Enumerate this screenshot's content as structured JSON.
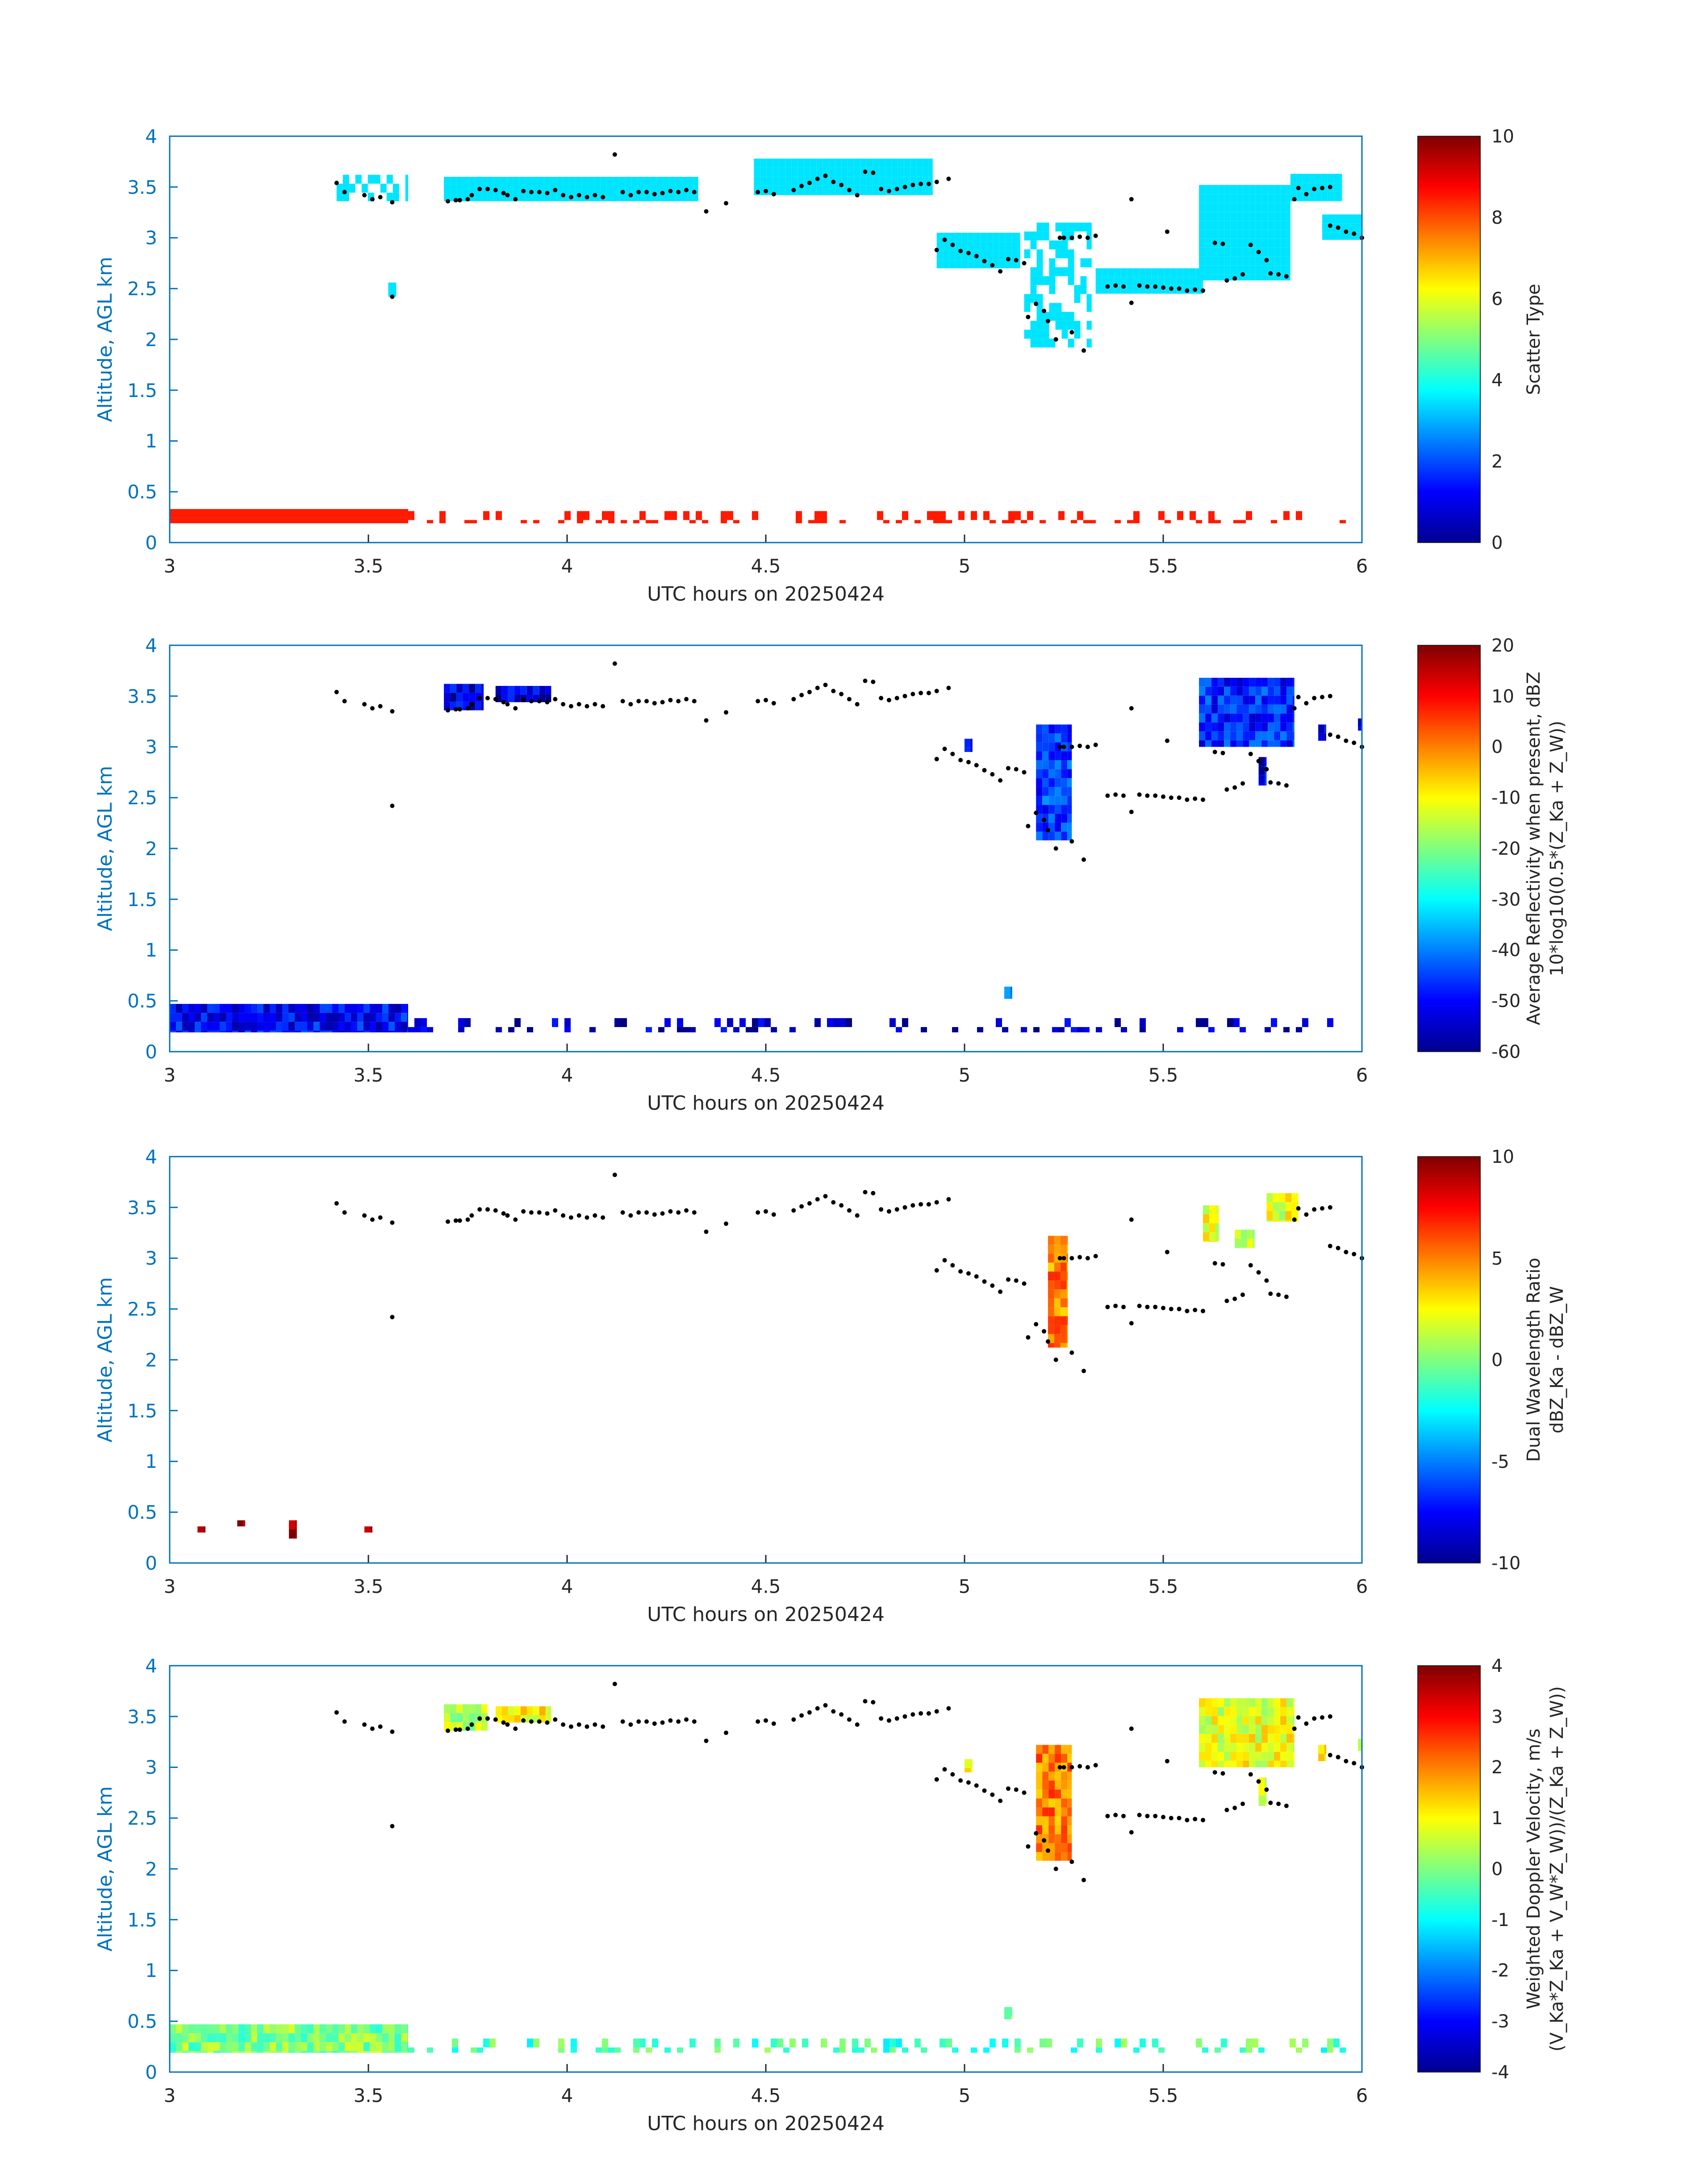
{
  "figure": {
    "colors": {
      "axis": "#0072BD",
      "text": "#262626",
      "background": "#ffffff"
    }
  },
  "chart_data": [
    {
      "type": "heatmap",
      "title": "",
      "xlabel": "UTC hours on 20250424",
      "ylabel": "Altitude, AGL km",
      "xlim": [
        3,
        6
      ],
      "ylim": [
        0,
        4
      ],
      "xticks": [
        "3",
        "3.5",
        "4",
        "4.5",
        "5",
        "5.5",
        "6"
      ],
      "yticks": [
        "0",
        "0.5",
        "1",
        "1.5",
        "2",
        "2.5",
        "3",
        "3.5",
        "4"
      ],
      "colorbar": {
        "label": [
          "Scatter Type"
        ],
        "range": [
          0,
          10
        ],
        "ticks": [
          "0",
          "2",
          "4",
          "6",
          "8",
          "10"
        ]
      },
      "regions": [
        {
          "x": [
            3.0,
            3.6
          ],
          "y": [
            0.19,
            0.33
          ],
          "value": 8.5
        },
        {
          "x": [
            3.6,
            6.0
          ],
          "y": [
            0.19,
            0.31
          ],
          "value": 8.5,
          "sparse": 0.3
        },
        {
          "x": [
            3.42,
            3.6
          ],
          "y": [
            3.36,
            3.62
          ],
          "value": 3.5,
          "sparse": 0.55
        },
        {
          "x": [
            3.55,
            3.57
          ],
          "y": [
            2.42,
            2.56
          ],
          "value": 3.5
        },
        {
          "x": [
            3.69,
            4.33
          ],
          "y": [
            3.36,
            3.6
          ],
          "value": 3.5
        },
        {
          "x": [
            4.47,
            4.92
          ],
          "y": [
            3.42,
            3.78
          ],
          "value": 3.5
        },
        {
          "x": [
            4.93,
            5.14
          ],
          "y": [
            2.7,
            3.05
          ],
          "value": 3.5
        },
        {
          "x": [
            5.15,
            5.32
          ],
          "y": [
            1.92,
            3.15
          ],
          "value": 3.5,
          "sparse": 0.55
        },
        {
          "x": [
            5.33,
            5.6
          ],
          "y": [
            2.45,
            2.7
          ],
          "value": 3.5
        },
        {
          "x": [
            5.59,
            5.82
          ],
          "y": [
            2.58,
            3.52
          ],
          "value": 3.5
        },
        {
          "x": [
            5.82,
            5.95
          ],
          "y": [
            3.36,
            3.63
          ],
          "value": 3.5
        },
        {
          "x": [
            5.9,
            6.0
          ],
          "y": [
            2.98,
            3.23
          ],
          "value": 3.5
        }
      ]
    },
    {
      "type": "heatmap",
      "title": "",
      "xlabel": "UTC hours on 20250424",
      "ylabel": "Altitude, AGL km",
      "xlim": [
        3,
        6
      ],
      "ylim": [
        0,
        4
      ],
      "xticks": [
        "3",
        "3.5",
        "4",
        "4.5",
        "5",
        "5.5",
        "6"
      ],
      "yticks": [
        "0",
        "0.5",
        "1",
        "1.5",
        "2",
        "2.5",
        "3",
        "3.5",
        "4"
      ],
      "colorbar": {
        "label": [
          "Average Reflectivity when present, dBZ",
          "10*log10(0.5*(Z_Ka + Z_W))"
        ],
        "range": [
          -60,
          20
        ],
        "ticks": [
          "-60",
          "-50",
          "-40",
          "-30",
          "-20",
          "-10",
          "0",
          "10",
          "20"
        ]
      },
      "regions": [
        {
          "x": [
            3.0,
            3.6
          ],
          "y": [
            0.19,
            0.47
          ],
          "value": -50
        },
        {
          "x": [
            3.6,
            6.0
          ],
          "y": [
            0.19,
            0.33
          ],
          "value": -55,
          "sparse": 0.3
        },
        {
          "x": [
            3.69,
            3.79
          ],
          "y": [
            3.36,
            3.62
          ],
          "value": -52
        },
        {
          "x": [
            3.82,
            3.96
          ],
          "y": [
            3.44,
            3.6
          ],
          "value": -53
        },
        {
          "x": [
            5.0,
            5.02
          ],
          "y": [
            2.95,
            3.08
          ],
          "value": -52
        },
        {
          "x": [
            5.18,
            5.27
          ],
          "y": [
            2.08,
            3.22
          ],
          "value": -45
        },
        {
          "x": [
            5.59,
            5.83
          ],
          "y": [
            3.0,
            3.68
          ],
          "value": -47
        },
        {
          "x": [
            5.74,
            5.76
          ],
          "y": [
            2.62,
            2.9
          ],
          "value": -52
        },
        {
          "x": [
            5.89,
            5.91
          ],
          "y": [
            3.06,
            3.22
          ],
          "value": -52
        },
        {
          "x": [
            5.99,
            6.0
          ],
          "y": [
            3.16,
            3.28
          ],
          "value": -52
        },
        {
          "x": [
            5.1,
            5.12
          ],
          "y": [
            0.52,
            0.64
          ],
          "value": -40
        }
      ]
    },
    {
      "type": "heatmap",
      "title": "",
      "xlabel": "UTC hours on 20250424",
      "ylabel": "Altitude, AGL km",
      "xlim": [
        3,
        6
      ],
      "ylim": [
        0,
        4
      ],
      "xticks": [
        "3",
        "3.5",
        "4",
        "4.5",
        "5",
        "5.5",
        "6"
      ],
      "yticks": [
        "0",
        "0.5",
        "1",
        "1.5",
        "2",
        "2.5",
        "3",
        "3.5",
        "4"
      ],
      "colorbar": {
        "label": [
          "Dual Wavelength Ratio",
          "dBZ_Ka - dBZ_W"
        ],
        "range": [
          -10,
          10
        ],
        "ticks": [
          "-10",
          "-5",
          "0",
          "5",
          "10"
        ]
      },
      "regions": [
        {
          "x": [
            3.07,
            3.09
          ],
          "y": [
            0.3,
            0.36
          ],
          "value": 10
        },
        {
          "x": [
            3.17,
            3.19
          ],
          "y": [
            0.36,
            0.42
          ],
          "value": 10
        },
        {
          "x": [
            3.3,
            3.32
          ],
          "y": [
            0.24,
            0.42
          ],
          "value": 9
        },
        {
          "x": [
            3.49,
            3.51
          ],
          "y": [
            0.3,
            0.36
          ],
          "value": 10
        },
        {
          "x": [
            5.21,
            5.26
          ],
          "y": [
            2.12,
            3.22
          ],
          "value": 5
        },
        {
          "x": [
            5.6,
            5.64
          ],
          "y": [
            3.16,
            3.52
          ],
          "value": 2
        },
        {
          "x": [
            5.68,
            5.73
          ],
          "y": [
            3.1,
            3.28
          ],
          "value": 1
        },
        {
          "x": [
            5.76,
            5.84
          ],
          "y": [
            3.36,
            3.64
          ],
          "value": 2
        }
      ]
    },
    {
      "type": "heatmap",
      "title": "",
      "xlabel": "UTC hours on 20250424",
      "ylabel": "Altitude, AGL km",
      "xlim": [
        3,
        6
      ],
      "ylim": [
        0,
        4
      ],
      "xticks": [
        "3",
        "3.5",
        "4",
        "4.5",
        "5",
        "5.5",
        "6"
      ],
      "yticks": [
        "0",
        "0.5",
        "1",
        "1.5",
        "2",
        "2.5",
        "3",
        "3.5",
        "4"
      ],
      "colorbar": {
        "label": [
          "Weighted Doppler Velocity, m/s",
          "(V_Ka*Z_Ka + V_W*Z_W))/(Z_Ka + Z_W))"
        ],
        "range": [
          -4,
          4
        ],
        "ticks": [
          "-4",
          "-3",
          "-2",
          "-1",
          "0",
          "1",
          "2",
          "3",
          "4"
        ]
      },
      "regions": [
        {
          "x": [
            3.0,
            3.6
          ],
          "y": [
            0.19,
            0.47
          ],
          "value": 0
        },
        {
          "x": [
            3.6,
            6.0
          ],
          "y": [
            0.19,
            0.33
          ],
          "value": -0.4,
          "sparse": 0.3
        },
        {
          "x": [
            3.69,
            3.8
          ],
          "y": [
            3.36,
            3.62
          ],
          "value": 0.5
        },
        {
          "x": [
            3.82,
            3.96
          ],
          "y": [
            3.44,
            3.6
          ],
          "value": 1
        },
        {
          "x": [
            5.0,
            5.02
          ],
          "y": [
            2.95,
            3.08
          ],
          "value": 1
        },
        {
          "x": [
            5.18,
            5.27
          ],
          "y": [
            2.08,
            3.22
          ],
          "value": 2
        },
        {
          "x": [
            5.59,
            5.83
          ],
          "y": [
            3.0,
            3.68
          ],
          "value": 0.8
        },
        {
          "x": [
            5.74,
            5.76
          ],
          "y": [
            2.62,
            2.9
          ],
          "value": 0.5
        },
        {
          "x": [
            5.89,
            5.91
          ],
          "y": [
            3.06,
            3.22
          ],
          "value": 1
        },
        {
          "x": [
            5.99,
            6.0
          ],
          "y": [
            3.16,
            3.28
          ],
          "value": 0.8
        },
        {
          "x": [
            5.1,
            5.12
          ],
          "y": [
            0.52,
            0.64
          ],
          "value": 0
        }
      ]
    }
  ],
  "cloud_top_points": [
    [
      3.42,
      3.54
    ],
    [
      3.44,
      3.45
    ],
    [
      3.49,
      3.42
    ],
    [
      3.51,
      3.38
    ],
    [
      3.53,
      3.4
    ],
    [
      3.56,
      3.35
    ],
    [
      3.56,
      2.42
    ],
    [
      3.7,
      3.36
    ],
    [
      3.72,
      3.37
    ],
    [
      3.73,
      3.37
    ],
    [
      3.75,
      3.38
    ],
    [
      3.76,
      3.42
    ],
    [
      3.78,
      3.48
    ],
    [
      3.8,
      3.48
    ],
    [
      3.82,
      3.47
    ],
    [
      3.84,
      3.44
    ],
    [
      3.85,
      3.42
    ],
    [
      3.87,
      3.38
    ],
    [
      3.89,
      3.46
    ],
    [
      3.91,
      3.45
    ],
    [
      3.93,
      3.45
    ],
    [
      3.95,
      3.44
    ],
    [
      3.97,
      3.47
    ],
    [
      3.99,
      3.42
    ],
    [
      4.01,
      3.4
    ],
    [
      4.03,
      3.42
    ],
    [
      4.05,
      3.4
    ],
    [
      4.07,
      3.42
    ],
    [
      4.09,
      3.4
    ],
    [
      4.12,
      3.82
    ],
    [
      4.14,
      3.45
    ],
    [
      4.16,
      3.42
    ],
    [
      4.18,
      3.45
    ],
    [
      4.2,
      3.45
    ],
    [
      4.22,
      3.43
    ],
    [
      4.24,
      3.44
    ],
    [
      4.26,
      3.46
    ],
    [
      4.28,
      3.45
    ],
    [
      4.3,
      3.47
    ],
    [
      4.32,
      3.45
    ],
    [
      4.35,
      3.26
    ],
    [
      4.4,
      3.34
    ],
    [
      4.48,
      3.45
    ],
    [
      4.5,
      3.46
    ],
    [
      4.52,
      3.43
    ],
    [
      4.57,
      3.47
    ],
    [
      4.59,
      3.51
    ],
    [
      4.61,
      3.54
    ],
    [
      4.63,
      3.58
    ],
    [
      4.65,
      3.61
    ],
    [
      4.67,
      3.55
    ],
    [
      4.69,
      3.52
    ],
    [
      4.71,
      3.47
    ],
    [
      4.73,
      3.42
    ],
    [
      4.75,
      3.65
    ],
    [
      4.77,
      3.64
    ],
    [
      4.79,
      3.48
    ],
    [
      4.81,
      3.46
    ],
    [
      4.83,
      3.48
    ],
    [
      4.85,
      3.5
    ],
    [
      4.87,
      3.52
    ],
    [
      4.89,
      3.53
    ],
    [
      4.91,
      3.53
    ],
    [
      4.93,
      3.55
    ],
    [
      4.96,
      3.58
    ],
    [
      4.93,
      2.88
    ],
    [
      4.95,
      2.98
    ],
    [
      4.97,
      2.93
    ],
    [
      4.99,
      2.87
    ],
    [
      5.01,
      2.85
    ],
    [
      5.03,
      2.82
    ],
    [
      5.05,
      2.77
    ],
    [
      5.07,
      2.73
    ],
    [
      5.09,
      2.67
    ],
    [
      5.11,
      2.79
    ],
    [
      5.13,
      2.78
    ],
    [
      5.15,
      2.75
    ],
    [
      5.16,
      2.22
    ],
    [
      5.18,
      2.35
    ],
    [
      5.2,
      2.28
    ],
    [
      5.21,
      2.18
    ],
    [
      5.23,
      2.0
    ],
    [
      5.24,
      3.0
    ],
    [
      5.25,
      3.0
    ],
    [
      5.27,
      3.0
    ],
    [
      5.29,
      3.01
    ],
    [
      5.31,
      3.0
    ],
    [
      5.33,
      3.02
    ],
    [
      5.27,
      2.07
    ],
    [
      5.3,
      1.89
    ],
    [
      5.36,
      2.52
    ],
    [
      5.38,
      2.53
    ],
    [
      5.4,
      2.52
    ],
    [
      5.42,
      3.38
    ],
    [
      5.42,
      2.36
    ],
    [
      5.44,
      2.53
    ],
    [
      5.46,
      2.52
    ],
    [
      5.48,
      2.52
    ],
    [
      5.5,
      2.51
    ],
    [
      5.52,
      2.5
    ],
    [
      5.54,
      2.5
    ],
    [
      5.56,
      2.48
    ],
    [
      5.58,
      2.49
    ],
    [
      5.6,
      2.48
    ],
    [
      5.51,
      3.06
    ],
    [
      5.63,
      2.95
    ],
    [
      5.65,
      2.94
    ],
    [
      5.66,
      2.58
    ],
    [
      5.68,
      2.6
    ],
    [
      5.7,
      2.64
    ],
    [
      5.72,
      2.93
    ],
    [
      5.74,
      2.86
    ],
    [
      5.76,
      2.78
    ],
    [
      5.77,
      2.65
    ],
    [
      5.79,
      2.64
    ],
    [
      5.81,
      2.62
    ],
    [
      5.83,
      3.38
    ],
    [
      5.84,
      3.49
    ],
    [
      5.86,
      3.43
    ],
    [
      5.88,
      3.48
    ],
    [
      5.9,
      3.49
    ],
    [
      5.92,
      3.5
    ],
    [
      5.92,
      3.12
    ],
    [
      5.94,
      3.1
    ],
    [
      5.96,
      3.06
    ],
    [
      5.98,
      3.04
    ],
    [
      6.0,
      3.0
    ]
  ]
}
